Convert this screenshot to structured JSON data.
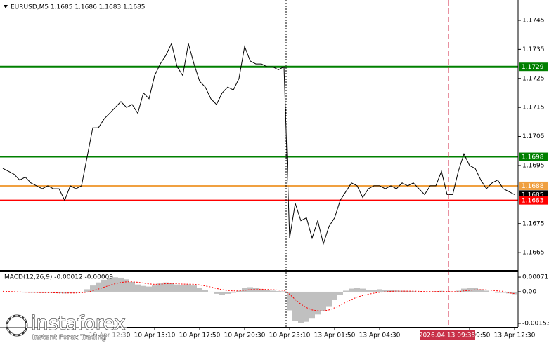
{
  "chart_data": [
    {
      "type": "line",
      "title": "EURUSD,M5  1.1685 1.1686 1.1683 1.1685",
      "color": "#000000",
      "categories": [
        null,
        null,
        null,
        null,
        null,
        null,
        null,
        null,
        null,
        null,
        null,
        null,
        null,
        null,
        null,
        null,
        null,
        null,
        null,
        "10 Apr 12:30",
        null,
        null,
        null,
        null,
        null,
        null,
        null,
        "10 Apr 15:10",
        null,
        null,
        null,
        null,
        null,
        null,
        null,
        "10 Apr 17:50",
        null,
        null,
        null,
        null,
        null,
        null,
        null,
        "10 Apr 20:30",
        null,
        null,
        null,
        null,
        null,
        null,
        null,
        "10 Apr 23:10",
        null,
        null,
        null,
        null,
        null,
        null,
        null,
        "13 Apr 01:50",
        null,
        null,
        null,
        null,
        null,
        null,
        null,
        "13 Apr 04:30",
        null,
        null,
        null,
        null,
        null,
        null,
        null,
        null,
        null,
        null,
        null,
        null,
        null,
        null,
        null,
        "13 Apr 09:50",
        null,
        null,
        null,
        null,
        null,
        null,
        null,
        "13 Apr 12:30"
      ],
      "values": [
        1.1694,
        1.1693,
        1.1692,
        1.169,
        1.1691,
        1.1689,
        1.1688,
        1.1687,
        1.1688,
        1.1687,
        1.1687,
        1.1683,
        1.1688,
        1.1687,
        1.1688,
        1.1698,
        1.1708,
        1.1708,
        1.1711,
        1.1713,
        1.1715,
        1.1717,
        1.1715,
        1.1716,
        1.1713,
        1.172,
        1.1718,
        1.1726,
        1.173,
        1.1733,
        1.1737,
        1.1729,
        1.1726,
        1.1737,
        1.173,
        1.1724,
        1.1722,
        1.1718,
        1.1716,
        1.172,
        1.1722,
        1.1721,
        1.1725,
        1.1736,
        1.1731,
        1.173,
        1.173,
        1.1729,
        1.1729,
        1.1728,
        1.1729,
        1.167,
        1.1682,
        1.1676,
        1.1677,
        1.167,
        1.1676,
        1.1668,
        1.1674,
        1.1677,
        1.1683,
        1.1686,
        1.1689,
        1.1688,
        1.1684,
        1.1687,
        1.1688,
        1.1688,
        1.1687,
        1.1688,
        1.1687,
        1.1689,
        1.1688,
        1.1689,
        1.1687,
        1.1685,
        1.1688,
        1.1688,
        1.1693,
        1.1685,
        1.1685,
        1.1693,
        1.1699,
        1.1695,
        1.1694,
        1.169,
        1.1687,
        1.1689,
        1.169,
        1.1687,
        1.1686,
        1.1685
      ],
      "ylim": [
        1.1659,
        1.1752
      ],
      "yticks": [
        1.1745,
        1.1735,
        1.1725,
        1.1715,
        1.1705,
        1.1695,
        1.1675,
        1.1665
      ],
      "current_price": 1.1685,
      "levels": [
        {
          "value": 1.1729,
          "color": "#008000"
        },
        {
          "value": 1.1698,
          "color": "#008000"
        },
        {
          "value": 1.1688,
          "color": "#f0a040"
        },
        {
          "value": 1.1683,
          "color": "#ff0000"
        }
      ],
      "crosshair_label": "2026.04.13 09:35",
      "watermark": {
        "brand": "instaforex",
        "tagline": "Instant Forex Trading"
      }
    },
    {
      "type": "bar",
      "title": "MACD(12,26,9) -0.00012 -0.00009",
      "series": [
        {
          "type": "bar",
          "color": "#c0c0c0",
          "values": [
            0,
            0,
            -2e-05,
            -3e-05,
            -4e-05,
            -5e-05,
            -5e-05,
            -6e-05,
            -5e-05,
            -6e-05,
            -7e-05,
            -8e-05,
            -6e-05,
            -5e-05,
            -4e-05,
            0.00012,
            0.0003,
            0.00045,
            0.00058,
            0.00066,
            0.0007,
            0.00068,
            0.0006,
            0.00048,
            0.00035,
            0.00028,
            0.00025,
            0.0003,
            0.0004,
            0.00045,
            0.00042,
            0.00035,
            0.00032,
            0.00036,
            0.0003,
            0.0002,
            0.0001,
            0,
            -0.0001,
            -0.00015,
            -0.0001,
            -5e-05,
            5e-05,
            0.0002,
            0.00022,
            0.00018,
            0.00012,
            8e-05,
            5e-05,
            3e-05,
            2e-05,
            -0.0009,
            -0.0014,
            -0.0015,
            -0.00145,
            -0.0013,
            -0.0011,
            -0.00095,
            -0.0007,
            -0.0004,
            -0.00015,
            5e-05,
            0.00015,
            0.0002,
            0.00015,
            0.0001,
            0.0001,
            0.00012,
            0.0001,
            8e-05,
            6e-05,
            5e-05,
            4e-05,
            3e-05,
            0,
            -2e-05,
            0,
            2e-05,
            4e-05,
            0,
            -2e-05,
            5e-05,
            0.00015,
            0.0002,
            0.00018,
            0.00012,
            5e-05,
            -2e-05,
            -5e-05,
            -5e-05,
            -8e-05,
            -0.00012
          ]
        },
        {
          "type": "line",
          "color": "#ff0000",
          "values": [
            2e-05,
            1e-05,
            0,
            -1e-05,
            -2e-05,
            -3e-05,
            -4e-05,
            -4e-05,
            -5e-05,
            -5e-05,
            -6e-05,
            -6e-05,
            -6e-05,
            -6e-05,
            -5e-05,
            -2e-05,
            5e-05,
            0.00013,
            0.00022,
            0.00031,
            0.00039,
            0.00045,
            0.00048,
            0.00048,
            0.00046,
            0.00042,
            0.00038,
            0.00036,
            0.00037,
            0.00039,
            0.0004,
            0.00039,
            0.00037,
            0.00037,
            0.00036,
            0.00033,
            0.00028,
            0.00023,
            0.00016,
            0.0001,
            6e-05,
            4e-05,
            4e-05,
            7e-05,
            0.0001,
            0.00012,
            0.00012,
            0.00011,
            0.0001,
            8e-05,
            7e-05,
            -0.00012,
            -0.00038,
            -0.0006,
            -0.00077,
            -0.00088,
            -0.00092,
            -0.00093,
            -0.00088,
            -0.00078,
            -0.00065,
            -0.00051,
            -0.00038,
            -0.00026,
            -0.00018,
            -0.00012,
            -7e-05,
            -3e-05,
            0,
            2e-05,
            3e-05,
            3e-05,
            3e-05,
            3e-05,
            2e-05,
            1e-05,
            1e-05,
            1e-05,
            2e-05,
            1e-05,
            0,
            1e-05,
            4e-05,
            7e-05,
            9e-05,
            0.0001,
            9e-05,
            7e-05,
            4e-05,
            2e-05,
            -6e-05,
            -9e-05
          ]
        }
      ],
      "ylim": [
        -0.0017,
        0.00095
      ],
      "yticks": [
        0.00071,
        {
          "value": 0,
          "label": "0.00"
        },
        -0.00153
      ]
    }
  ]
}
